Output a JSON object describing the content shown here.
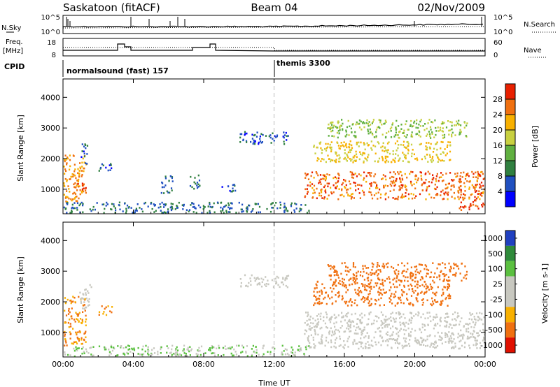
{
  "header": {
    "station": "Saskatoon (fitACF)",
    "beam": "Beam 04",
    "date": "02/Nov/2009"
  },
  "noise_panel": {
    "left_label": "N.Sky",
    "left_ticks": [
      "10^5",
      "10^0"
    ],
    "right_label": "N.Search",
    "right_ticks": [
      "10^5",
      "10^0"
    ]
  },
  "freq_panel": {
    "left_label_1": "Freq.",
    "left_label_2": "[MHz]",
    "left_ticks": [
      "18",
      "8"
    ],
    "right_label": "Nave",
    "right_ticks": [
      "60",
      "0"
    ]
  },
  "cpid_panel": {
    "label": "CPID",
    "mode_1": "normalsound (fast) 157",
    "mode_2": "themis 3300"
  },
  "chart_data": [
    {
      "type": "heatmap",
      "title": "Power",
      "ylabel": "Slant Range [km]",
      "ylim": [
        200,
        4600
      ],
      "yticks": [
        1000,
        2000,
        3000,
        4000
      ],
      "xlim": [
        0,
        24
      ],
      "colorbar": {
        "label": "Power [dB]",
        "range": [
          0,
          32
        ],
        "ticks": [
          4,
          8,
          12,
          16,
          20,
          24,
          28
        ],
        "tick_labels": [
          "4",
          "8",
          "12",
          "16",
          "20",
          "24",
          "28"
        ],
        "colors": [
          "#0000ff",
          "#2050c0",
          "#308040",
          "#60b040",
          "#c8d040",
          "#f8b000",
          "#f07010",
          "#e82000"
        ]
      },
      "echo_regions": [
        {
          "t0": 0.0,
          "t1": 1.3,
          "r0": 600,
          "r1": 2200,
          "level": 24
        },
        {
          "t0": 0.4,
          "t1": 1.3,
          "r0": 900,
          "r1": 1250,
          "level": 28
        },
        {
          "t0": 1.0,
          "t1": 1.4,
          "r0": 1800,
          "r1": 2500,
          "level": 6
        },
        {
          "t0": 2.0,
          "t1": 2.8,
          "r0": 1600,
          "r1": 1900,
          "level": 6
        },
        {
          "t0": 0.0,
          "t1": 14.0,
          "r0": 250,
          "r1": 600,
          "level": 8
        },
        {
          "t0": 5.5,
          "t1": 6.2,
          "r0": 900,
          "r1": 1500,
          "level": 8
        },
        {
          "t0": 7.2,
          "t1": 7.8,
          "r0": 1000,
          "r1": 1500,
          "level": 8
        },
        {
          "t0": 9.0,
          "t1": 9.8,
          "r0": 900,
          "r1": 1200,
          "level": 6
        },
        {
          "t0": 10.0,
          "t1": 12.8,
          "r0": 2500,
          "r1": 2900,
          "level": 6
        },
        {
          "t0": 13.7,
          "t1": 24.0,
          "r0": 700,
          "r1": 1600,
          "level": 26
        },
        {
          "t0": 14.2,
          "t1": 22.0,
          "r0": 1900,
          "r1": 2600,
          "level": 20
        },
        {
          "t0": 15.0,
          "t1": 23.0,
          "r0": 2700,
          "r1": 3300,
          "level": 16
        },
        {
          "t0": 22.5,
          "t1": 24.0,
          "r0": 350,
          "r1": 700,
          "level": 28
        }
      ]
    },
    {
      "type": "heatmap",
      "title": "Velocity",
      "ylabel": "Slant Range [km]",
      "ylim": [
        200,
        4600
      ],
      "yticks": [
        1000,
        2000,
        3000,
        4000
      ],
      "xlim": [
        0,
        24
      ],
      "xticks": [
        0,
        4,
        8,
        12,
        16,
        20,
        24
      ],
      "xtick_labels": [
        "00:00",
        "04:00",
        "08:00",
        "12:00",
        "16:00",
        "20:00",
        "00:00"
      ],
      "xlabel": "Time UT",
      "colorbar": {
        "label": "Velocity [m s-1]",
        "tick_labels": [
          "1000",
          "500",
          "100",
          "25",
          "-25",
          "-100",
          "-500",
          "-1000"
        ],
        "colors": [
          "#2040c0",
          "#2f8a3a",
          "#5bc040",
          "#c8c8c0",
          "#c8c8c0",
          "#f8b000",
          "#f07010",
          "#e01000"
        ]
      },
      "echo_regions": [
        {
          "t0": 0.0,
          "t1": 1.3,
          "r0": 600,
          "r1": 2200,
          "level": -100
        },
        {
          "t0": 0.9,
          "t1": 1.6,
          "r0": 1800,
          "r1": 2600,
          "level": 0
        },
        {
          "t0": 2.0,
          "t1": 2.8,
          "r0": 1600,
          "r1": 1900,
          "level": -100
        },
        {
          "t0": 0.0,
          "t1": 14.0,
          "r0": 250,
          "r1": 600,
          "level": 100
        },
        {
          "t0": 10.0,
          "t1": 12.8,
          "r0": 2500,
          "r1": 2900,
          "level": 0
        },
        {
          "t0": 13.7,
          "t1": 24.0,
          "r0": 500,
          "r1": 1700,
          "level": 0
        },
        {
          "t0": 14.2,
          "t1": 22.0,
          "r0": 1900,
          "r1": 2700,
          "level": -300
        },
        {
          "t0": 15.0,
          "t1": 23.0,
          "r0": 2700,
          "r1": 3300,
          "level": -300
        }
      ]
    }
  ]
}
